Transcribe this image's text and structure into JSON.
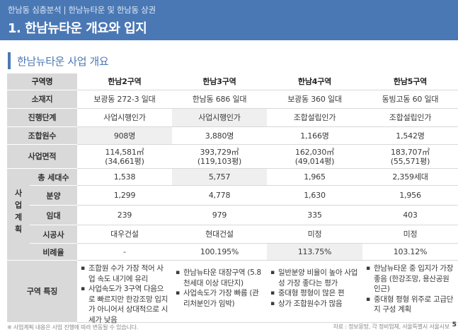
{
  "header": {
    "breadcrumb": "한남동 심층분석 | 한남뉴타운 및 한남동 상권",
    "title": "1. 한남뉴타운 개요와 입지"
  },
  "section": {
    "title": "한남뉴타운 사업 개요"
  },
  "table": {
    "columns": [
      "구역명",
      "한남2구역",
      "한남3구역",
      "한남4구역",
      "한남5구역"
    ],
    "rows": {
      "location": {
        "label": "소재지",
        "values": [
          "보광동 272-3 일대",
          "한남동 686 일대",
          "보광동 360 일대",
          "동빙고동 60 일대"
        ]
      },
      "stage": {
        "label": "진행단계",
        "values": [
          "사업시행인가",
          "사업시행인가",
          "조합설립인가",
          "조합설립인가"
        ]
      },
      "members": {
        "label": "조합원수",
        "values": [
          "908명",
          "3,880명",
          "1,166명",
          "1,542명"
        ]
      },
      "area": {
        "label": "사업면적",
        "values": [
          "114,581㎡",
          "393,729㎡",
          "162,030㎡",
          "183,707㎡"
        ],
        "values_py": [
          "(34,661평)",
          "(119,103평)",
          "(49,014평)",
          "(55,571평)"
        ]
      },
      "plan_label_chars": [
        "사",
        "업",
        "계",
        "획"
      ],
      "households": {
        "label": "총 세대수",
        "values": [
          "1,538",
          "5,757",
          "1,965",
          "2,359세대"
        ]
      },
      "sale": {
        "label": "분양",
        "values": [
          "1,299",
          "4,778",
          "1,630",
          "1,956"
        ]
      },
      "rent": {
        "label": "임대",
        "values": [
          "239",
          "979",
          "335",
          "403"
        ]
      },
      "builder": {
        "label": "시공사",
        "values": [
          "대우건설",
          "현대건설",
          "미정",
          "미정"
        ]
      },
      "ratio": {
        "label": "비례율",
        "values": [
          "-",
          "100.195%",
          "113.75%",
          "103.12%"
        ]
      },
      "features": {
        "label": "구역 특징",
        "col2": [
          "조합원 수가 가장 적어 사업 속도 내기에 유리",
          "사업속도가 3구역 다음으로 빠르지만 한강조망 입지가 아니어서 상대적으로 시세가 낮음"
        ],
        "col3": [
          "한남뉴타운 대장구역 (5.8천세대 이상 대단지)",
          "사업속도가 가장 빠름 (관리처분인가 임박)"
        ],
        "col4": [
          "일반분양 비율이 높아 사업성 가장 좋다는 평가",
          "중대형 평형이 많은 편",
          "상가 조합원수가 많음"
        ],
        "col5": [
          "한남뉴타운 중 입지가 가장 좋음 (한강조망, 용산공원 인근)",
          "중대형 평형 위주로 고급단지 구성 계획"
        ]
      }
    }
  },
  "footnote": "※ 사업계획 내용은 사업 진행에 따라 변동될 수 있습니다.",
  "source": "자료 : 정보몽땅, 각 정비업체, 서울특별시 서울시보",
  "page_number": "5",
  "colors": {
    "header_bg": "#4a78b5",
    "label_bg": "#d9d9d9",
    "shade_bg": "#efefef"
  }
}
